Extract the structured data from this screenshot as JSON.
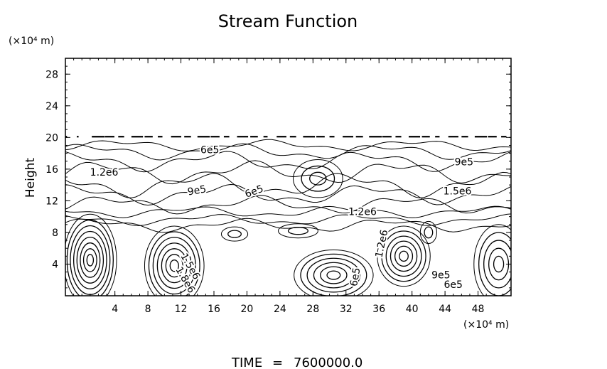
{
  "chart_data": {
    "type": "contour",
    "title": "Stream Function",
    "xlabel": "(×10⁴ m)",
    "ylabel": "Height",
    "yunit": "(×10⁴ m)",
    "xlim": [
      -2,
      52
    ],
    "ylim": [
      0,
      30
    ],
    "xticks": [
      4,
      8,
      12,
      16,
      20,
      24,
      28,
      32,
      36,
      40,
      44,
      48
    ],
    "yticks": [
      4,
      8,
      12,
      16,
      20,
      24,
      28
    ],
    "grid": false,
    "contour_labels": [
      {
        "text": "1.2e6",
        "x": 2.7,
        "y": 15.2,
        "angle": 0
      },
      {
        "text": "6e5",
        "x": 15.5,
        "y": 18.0,
        "angle": 0
      },
      {
        "text": "9e5",
        "x": 14.0,
        "y": 12.9,
        "angle": 10
      },
      {
        "text": "6e5",
        "x": 21.0,
        "y": 12.8,
        "angle": 20
      },
      {
        "text": "1.2e6",
        "x": 34.0,
        "y": 10.2,
        "angle": 0
      },
      {
        "text": "9e5",
        "x": 46.3,
        "y": 16.5,
        "angle": 0
      },
      {
        "text": "1.5e6",
        "x": 45.5,
        "y": 12.8,
        "angle": 0
      },
      {
        "text": "1.2e6",
        "x": 36.7,
        "y": 6.5,
        "angle": 78
      },
      {
        "text": "1.5e6",
        "x": 12.8,
        "y": 3.5,
        "angle": -60
      },
      {
        "text": "1.8e6",
        "x": 12.2,
        "y": 1.8,
        "angle": -60
      },
      {
        "text": "6e5",
        "x": 33.5,
        "y": 2.3,
        "angle": 80
      },
      {
        "text": "9e5",
        "x": 43.5,
        "y": 2.2,
        "angle": 0
      },
      {
        "text": "6e5",
        "x": 45.0,
        "y": 1.0,
        "angle": 0
      }
    ],
    "cells": [
      {
        "cx": 1.0,
        "cy": 4.5,
        "rx": 3.2,
        "ry": 5.8,
        "rings": 8
      },
      {
        "cx": 11.2,
        "cy": 3.8,
        "rx": 3.6,
        "ry": 5.0,
        "rings": 7
      },
      {
        "cx": 30.5,
        "cy": 2.6,
        "rx": 4.8,
        "ry": 3.2,
        "rings": 6
      },
      {
        "cx": 39.0,
        "cy": 5.0,
        "rx": 3.2,
        "ry": 3.8,
        "rings": 6
      },
      {
        "cx": 50.5,
        "cy": 4.0,
        "rx": 3.0,
        "ry": 5.0,
        "rings": 5
      },
      {
        "cx": 28.6,
        "cy": 14.8,
        "rx": 3.0,
        "ry": 2.4,
        "rings": 3
      },
      {
        "cx": 26.2,
        "cy": 8.2,
        "rx": 2.4,
        "ry": 0.9,
        "rings": 2
      },
      {
        "cx": 18.5,
        "cy": 7.8,
        "rx": 1.6,
        "ry": 0.9,
        "rings": 2
      },
      {
        "cx": 42.0,
        "cy": 8.0,
        "rx": 1.0,
        "ry": 1.4,
        "rings": 2
      }
    ],
    "layers": [
      {
        "y": 19.0,
        "amp": 0.5,
        "phase": 0.0
      },
      {
        "y": 18.2,
        "amp": 0.7,
        "phase": 1.3
      },
      {
        "y": 17.0,
        "amp": 0.9,
        "phase": 2.1
      },
      {
        "y": 15.6,
        "amp": 1.0,
        "phase": 0.7
      },
      {
        "y": 14.0,
        "amp": 1.1,
        "phase": 2.8
      },
      {
        "y": 12.8,
        "amp": 0.9,
        "phase": 1.9
      },
      {
        "y": 11.5,
        "amp": 0.8,
        "phase": 0.4
      },
      {
        "y": 10.6,
        "amp": 0.5,
        "phase": 3.2
      },
      {
        "y": 9.6,
        "amp": 0.5,
        "phase": 2.4
      },
      {
        "y": 8.9,
        "amp": 0.6,
        "phase": 1.1
      }
    ],
    "top_dashes_y": 20.1
  },
  "footer": {
    "time_label": "TIME",
    "equals": "=",
    "time_value": "7600000.0"
  }
}
